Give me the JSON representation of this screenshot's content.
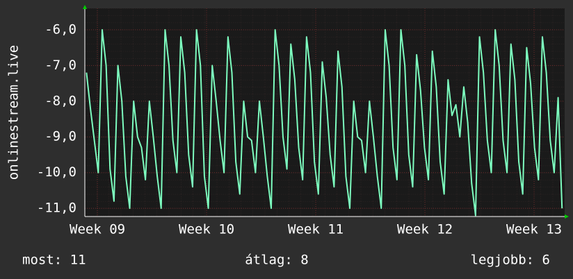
{
  "chart_data": {
    "type": "line",
    "y_label": "onlinestream.live",
    "x": [
      8.9,
      8.936,
      8.972,
      9.008,
      9.044,
      9.08,
      9.116,
      9.152,
      9.188,
      9.224,
      9.26,
      9.296,
      9.332,
      9.368,
      9.404,
      9.44,
      9.476,
      9.512,
      9.548,
      9.584,
      9.62,
      9.656,
      9.692,
      9.728,
      9.764,
      9.8,
      9.836,
      9.872,
      9.908,
      9.944,
      9.98,
      10.016,
      10.052,
      10.088,
      10.124,
      10.16,
      10.196,
      10.232,
      10.268,
      10.304,
      10.34,
      10.376,
      10.412,
      10.448,
      10.484,
      10.52,
      10.556,
      10.592,
      10.628,
      10.664,
      10.7,
      10.736,
      10.772,
      10.808,
      10.844,
      10.88,
      10.916,
      10.952,
      10.988,
      11.024,
      11.06,
      11.096,
      11.132,
      11.168,
      11.204,
      11.24,
      11.276,
      11.312,
      11.348,
      11.384,
      11.42,
      11.456,
      11.492,
      11.528,
      11.564,
      11.6,
      11.636,
      11.672,
      11.708,
      11.744,
      11.78,
      11.816,
      11.852,
      11.888,
      11.924,
      11.96,
      11.996,
      12.032,
      12.068,
      12.104,
      12.14,
      12.176,
      12.212,
      12.248,
      12.284,
      12.32,
      12.356,
      12.392,
      12.428,
      12.464,
      12.5,
      12.536,
      12.572,
      12.608,
      12.644,
      12.68,
      12.716,
      12.752,
      12.788,
      12.824,
      12.86,
      12.896,
      12.932,
      12.968,
      13.004,
      13.04,
      13.076,
      13.112,
      13.148,
      13.184,
      13.22,
      13.256
    ],
    "values": [
      -7.2,
      -8.2,
      -9.1,
      -10.0,
      -6.0,
      -7.0,
      -9.9,
      -10.8,
      -7.0,
      -8.0,
      -10.1,
      -11.0,
      -8.0,
      -9.0,
      -9.3,
      -10.2,
      -8.0,
      -9.0,
      -10.1,
      -11.0,
      -6.0,
      -7.0,
      -9.1,
      -10.0,
      -6.2,
      -7.2,
      -9.5,
      -10.4,
      -6.0,
      -7.0,
      -10.1,
      -11.0,
      -7.0,
      -8.0,
      -9.1,
      -10.0,
      -6.2,
      -7.2,
      -9.7,
      -10.6,
      -8.0,
      -9.0,
      -9.1,
      -10.0,
      -8.0,
      -9.0,
      -10.1,
      -11.0,
      -6.0,
      -7.0,
      -9.0,
      -9.9,
      -6.4,
      -7.4,
      -9.3,
      -10.2,
      -6.2,
      -7.2,
      -9.7,
      -10.6,
      -6.9,
      -7.9,
      -9.5,
      -10.4,
      -6.6,
      -7.6,
      -10.1,
      -11.0,
      -8.0,
      -9.0,
      -9.1,
      -10.0,
      -8.0,
      -9.0,
      -10.1,
      -11.0,
      -6.0,
      -7.0,
      -9.3,
      -10.2,
      -6.0,
      -7.0,
      -9.5,
      -10.4,
      -6.7,
      -7.7,
      -9.3,
      -10.2,
      -6.6,
      -7.6,
      -9.7,
      -10.6,
      -7.4,
      -8.4,
      -8.1,
      -9.0,
      -7.6,
      -8.6,
      -10.3,
      -11.2,
      -6.2,
      -7.2,
      -9.1,
      -10.0,
      -6.0,
      -7.0,
      -9.1,
      -10.0,
      -6.4,
      -7.4,
      -9.7,
      -10.6,
      -6.5,
      -7.5,
      -9.3,
      -10.2,
      -6.2,
      -7.2,
      -9.1,
      -10.0,
      -7.9,
      -11.0
    ],
    "color": "#7dfdbf",
    "xlim": [
      8.885,
      13.28
    ],
    "ylim": [
      -11.23,
      -5.4
    ],
    "xticks": [
      {
        "value": 9,
        "label": "Week 09"
      },
      {
        "value": 10,
        "label": "Week 10"
      },
      {
        "value": 11,
        "label": "Week 11"
      },
      {
        "value": 12,
        "label": "Week 12"
      },
      {
        "value": 13,
        "label": "Week 13"
      }
    ],
    "yticks": [
      {
        "value": -6,
        "label": "-6,0"
      },
      {
        "value": -7,
        "label": "-7,0"
      },
      {
        "value": -8,
        "label": "-8,0"
      },
      {
        "value": -9,
        "label": "-9,0"
      },
      {
        "value": -10,
        "label": "-10,0"
      },
      {
        "value": -11,
        "label": "-11,0"
      }
    ],
    "grid": true,
    "footer": [
      "most: 11",
      "átlag: 8",
      "legjobb: 6"
    ]
  }
}
